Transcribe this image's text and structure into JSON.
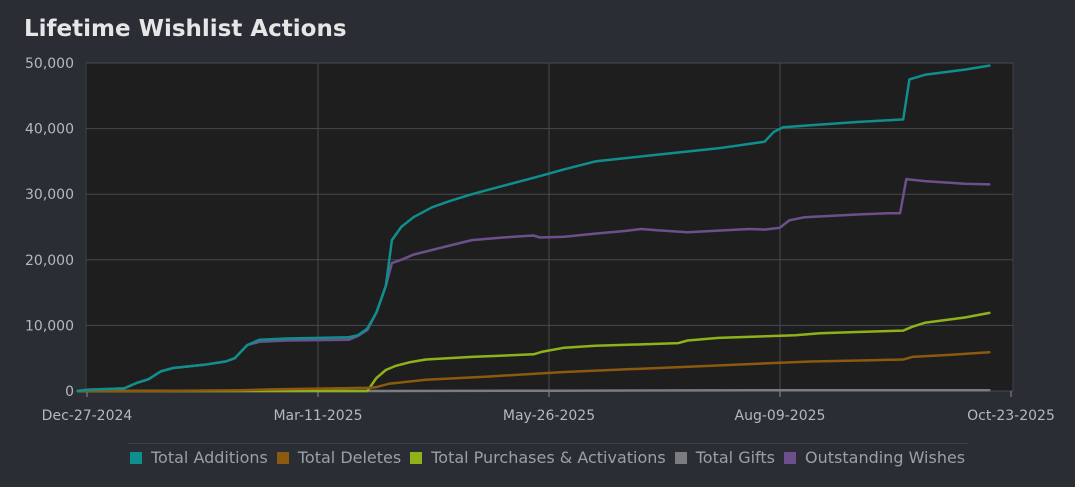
{
  "chart_data": {
    "type": "line",
    "title": "Lifetime Wishlist Actions",
    "xlabel": "",
    "ylabel": "",
    "x_ticks": [
      "Dec-27-2024",
      "Mar-11-2025",
      "May-26-2025",
      "Aug-09-2025",
      "Oct-23-2025"
    ],
    "x_range_days": [
      0,
      300
    ],
    "y_ticks": [
      "0",
      "10,000",
      "20,000",
      "30,000",
      "40,000",
      "50,000"
    ],
    "ylim": [
      0,
      50000
    ],
    "grid": true,
    "legend_position": "bottom",
    "series": [
      {
        "name": "Total Additions",
        "color": "#0e8f8d",
        "points": [
          [
            -3,
            0
          ],
          [
            0,
            200
          ],
          [
            12,
            400
          ],
          [
            16,
            1200
          ],
          [
            20,
            1800
          ],
          [
            24,
            3000
          ],
          [
            28,
            3500
          ],
          [
            38,
            4000
          ],
          [
            45,
            4500
          ],
          [
            48,
            5000
          ],
          [
            52,
            7000
          ],
          [
            56,
            7800
          ],
          [
            65,
            8000
          ],
          [
            85,
            8200
          ],
          [
            88,
            8500
          ],
          [
            91,
            9500
          ],
          [
            94,
            12000
          ],
          [
            97,
            16000
          ],
          [
            99,
            23000
          ],
          [
            102,
            25000
          ],
          [
            106,
            26500
          ],
          [
            112,
            28000
          ],
          [
            118,
            29000
          ],
          [
            125,
            30000
          ],
          [
            133,
            31000
          ],
          [
            145,
            32500
          ],
          [
            155,
            33800
          ],
          [
            165,
            35000
          ],
          [
            185,
            36000
          ],
          [
            205,
            37000
          ],
          [
            220,
            38000
          ],
          [
            223,
            39500
          ],
          [
            226,
            40200
          ],
          [
            235,
            40500
          ],
          [
            250,
            41000
          ],
          [
            265,
            41400
          ],
          [
            267,
            47500
          ],
          [
            272,
            48200
          ],
          [
            285,
            49000
          ],
          [
            293,
            49600
          ]
        ]
      },
      {
        "name": "Total Deletes",
        "color": "#8b5a10",
        "points": [
          [
            -3,
            0
          ],
          [
            20,
            0
          ],
          [
            50,
            100
          ],
          [
            60,
            250
          ],
          [
            80,
            400
          ],
          [
            92,
            500
          ],
          [
            94,
            600
          ],
          [
            98,
            1100
          ],
          [
            110,
            1700
          ],
          [
            130,
            2200
          ],
          [
            155,
            2900
          ],
          [
            180,
            3400
          ],
          [
            200,
            3800
          ],
          [
            220,
            4200
          ],
          [
            235,
            4500
          ],
          [
            255,
            4700
          ],
          [
            265,
            4800
          ],
          [
            268,
            5200
          ],
          [
            280,
            5500
          ],
          [
            293,
            5900
          ]
        ]
      },
      {
        "name": "Total Purchases & Activations",
        "color": "#8fb21a",
        "points": [
          [
            -3,
            0
          ],
          [
            91,
            0
          ],
          [
            94,
            2000
          ],
          [
            97,
            3200
          ],
          [
            100,
            3800
          ],
          [
            105,
            4400
          ],
          [
            110,
            4800
          ],
          [
            125,
            5200
          ],
          [
            145,
            5600
          ],
          [
            148,
            6000
          ],
          [
            155,
            6600
          ],
          [
            165,
            6900
          ],
          [
            180,
            7100
          ],
          [
            192,
            7300
          ],
          [
            195,
            7700
          ],
          [
            205,
            8100
          ],
          [
            230,
            8500
          ],
          [
            238,
            8800
          ],
          [
            250,
            9000
          ],
          [
            265,
            9200
          ],
          [
            268,
            9800
          ],
          [
            272,
            10400
          ],
          [
            285,
            11200
          ],
          [
            293,
            11900
          ]
        ]
      },
      {
        "name": "Total Gifts",
        "color": "#7a7c80",
        "points": [
          [
            -3,
            0
          ],
          [
            91,
            0
          ],
          [
            150,
            50
          ],
          [
            220,
            100
          ],
          [
            293,
            120
          ]
        ]
      },
      {
        "name": "Outstanding Wishes",
        "color": "#6d4f8e",
        "points": [
          [
            -3,
            0
          ],
          [
            0,
            200
          ],
          [
            12,
            400
          ],
          [
            16,
            1200
          ],
          [
            20,
            1800
          ],
          [
            24,
            3000
          ],
          [
            28,
            3500
          ],
          [
            38,
            4000
          ],
          [
            45,
            4500
          ],
          [
            48,
            5000
          ],
          [
            52,
            7000
          ],
          [
            56,
            7500
          ],
          [
            65,
            7700
          ],
          [
            85,
            7800
          ],
          [
            88,
            8400
          ],
          [
            91,
            9300
          ],
          [
            94,
            12000
          ],
          [
            97,
            16000
          ],
          [
            99,
            19500
          ],
          [
            102,
            20000
          ],
          [
            106,
            20800
          ],
          [
            112,
            21500
          ],
          [
            118,
            22200
          ],
          [
            125,
            23000
          ],
          [
            135,
            23400
          ],
          [
            145,
            23700
          ],
          [
            147,
            23400
          ],
          [
            155,
            23500
          ],
          [
            165,
            24000
          ],
          [
            175,
            24400
          ],
          [
            180,
            24700
          ],
          [
            185,
            24500
          ],
          [
            195,
            24200
          ],
          [
            215,
            24700
          ],
          [
            220,
            24600
          ],
          [
            225,
            24900
          ],
          [
            228,
            26000
          ],
          [
            233,
            26500
          ],
          [
            250,
            26900
          ],
          [
            260,
            27100
          ],
          [
            264,
            27100
          ],
          [
            266,
            32300
          ],
          [
            272,
            32000
          ],
          [
            285,
            31600
          ],
          [
            293,
            31500
          ]
        ]
      }
    ]
  }
}
